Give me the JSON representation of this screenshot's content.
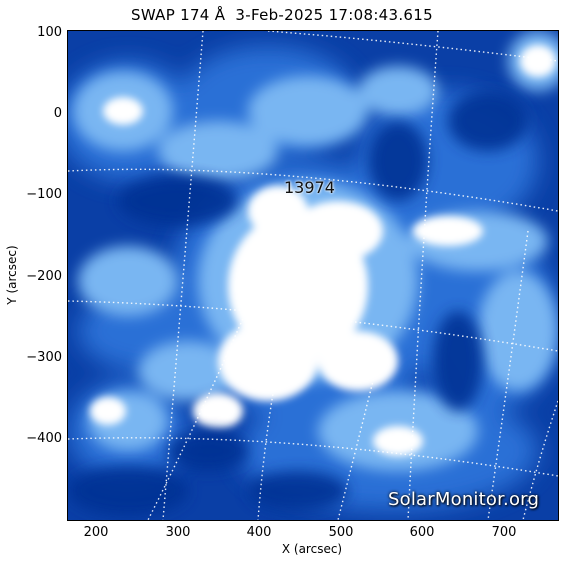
{
  "title": "SWAP 174 Å  3-Feb-2025 17:08:43.615",
  "axes": {
    "x_label": "X (arcsec)",
    "y_label": "Y (arcsec)",
    "x_ticks": [
      "200",
      "300",
      "400",
      "500",
      "600",
      "700"
    ],
    "y_ticks": [
      "100",
      "0",
      "−100",
      "−200",
      "−300",
      "−400"
    ],
    "x_range": [
      166,
      765
    ],
    "y_range": [
      -498,
      104
    ]
  },
  "image": {
    "colormap": [
      "#02339a",
      "#1a63d6",
      "#6aaef0",
      "#ffffff"
    ],
    "active_region": "13974"
  },
  "watermark": "SolarMonitor.org"
}
